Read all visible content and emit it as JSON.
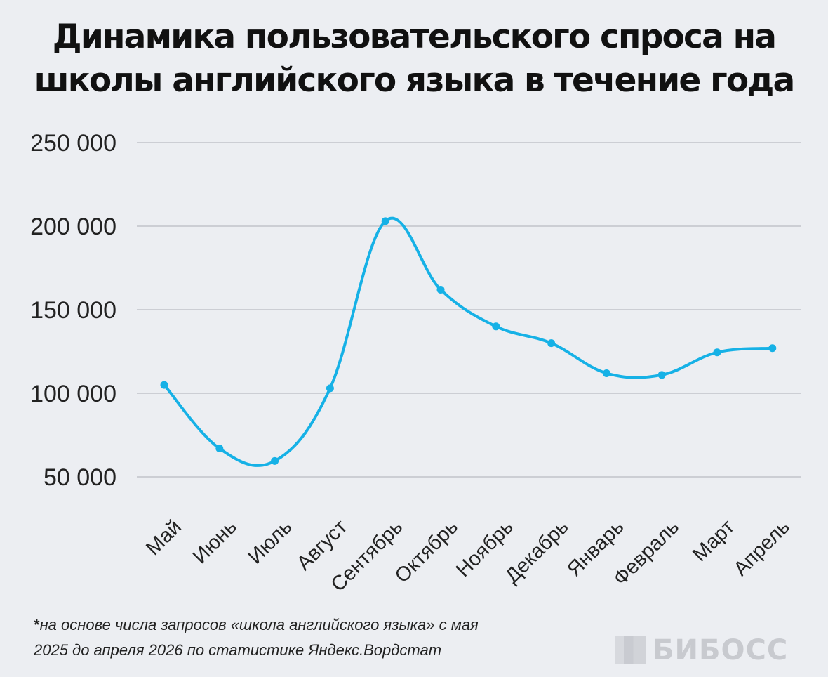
{
  "title_lines": [
    "Динамика пользовательского спроса на",
    "школы английского языка в течение года"
  ],
  "footnote": {
    "star": "*",
    "line1": "на основе числа запросов «школа английского языка» с мая",
    "line2": "2025 до апреля 2026 по статистике Яндекс.Вордстат"
  },
  "brand": {
    "text": "БИБОСС",
    "mark_icon": "bars-logo-icon"
  },
  "colors": {
    "line": "#16b1e6",
    "background": "#eceef2",
    "grid": "#b9bbc2",
    "text": "#222222"
  },
  "chart_data": {
    "type": "line",
    "title": "Динамика пользовательского спроса на школы английского языка в течение года",
    "categories": [
      "Май",
      "Июнь",
      "Июль",
      "Август",
      "Сентябрь",
      "Октябрь",
      "Ноябрь",
      "Декабрь",
      "Январь",
      "Февраль",
      "Март",
      "Апрель"
    ],
    "series": [
      {
        "values": [
          105000,
          67000,
          59500,
          103000,
          203000,
          162000,
          140000,
          130000,
          112000,
          111000,
          124500,
          127000
        ]
      }
    ],
    "yticks": [
      50000,
      100000,
      150000,
      200000,
      250000
    ],
    "ytick_labels": [
      "50 000",
      "100 000",
      "150 000",
      "200 000",
      "250 000"
    ],
    "ylim": [
      50000,
      250000
    ],
    "grid": true,
    "smooth": true,
    "legend": "none"
  }
}
